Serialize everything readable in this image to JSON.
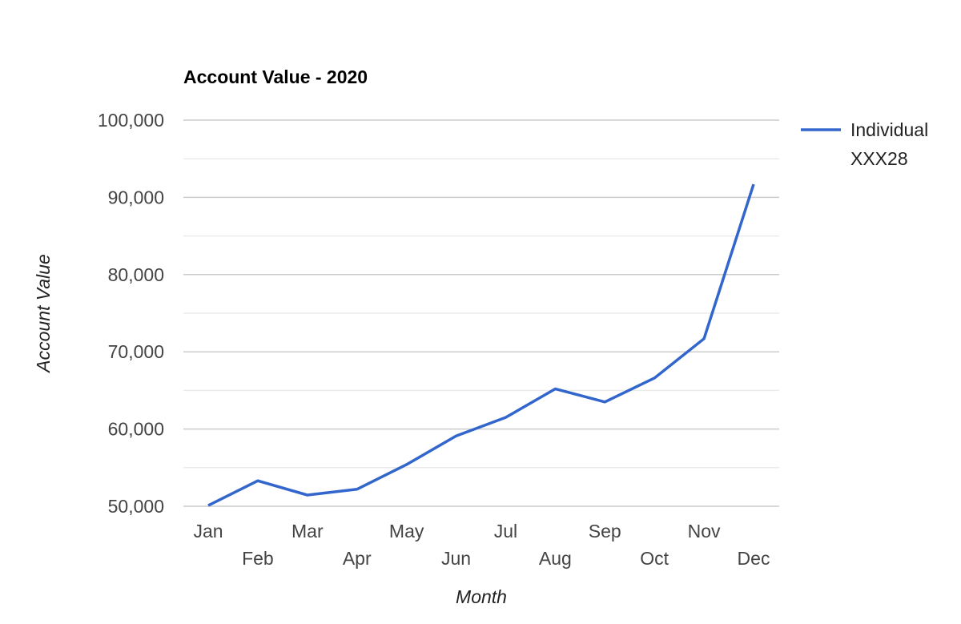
{
  "chart_data": {
    "type": "line",
    "title": "Account Value - 2020",
    "xlabel": "Month",
    "ylabel": "Account Value",
    "categories": [
      "Jan",
      "Feb",
      "Mar",
      "Apr",
      "May",
      "Jun",
      "Jul",
      "Aug",
      "Sep",
      "Oct",
      "Nov",
      "Dec"
    ],
    "series": [
      {
        "name": "Individual XXX28",
        "legend_lines": [
          "Individual",
          "XXX28"
        ],
        "color": "#3366cc",
        "values": [
          50100,
          53300,
          51450,
          52200,
          55400,
          59100,
          61500,
          65200,
          63500,
          66600,
          71700,
          91700
        ]
      }
    ],
    "ylim": [
      50000,
      100000
    ],
    "yticks": [
      50000,
      60000,
      70000,
      80000,
      90000,
      100000
    ],
    "ytick_labels": [
      "50,000",
      "60,000",
      "70,000",
      "80,000",
      "90,000",
      "100,000"
    ],
    "minor_gridlines": [
      55000,
      65000,
      75000,
      85000,
      95000
    ],
    "grid": true,
    "legend_position": "right"
  }
}
